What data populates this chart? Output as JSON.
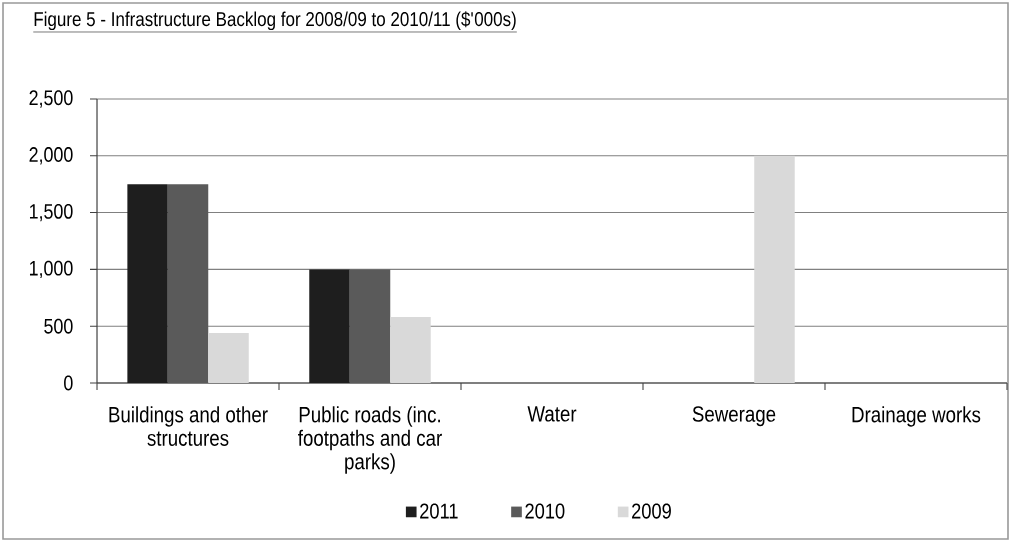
{
  "chart_data": {
    "type": "bar",
    "title": "Figure 5 - Infrastructure Backlog for 2008/09 to 2010/11 ($'000s)",
    "categories": [
      "Buildings and other structures",
      "Public roads (inc. footpaths and car parks)",
      "Water",
      "Sewerage",
      "Drainage works"
    ],
    "series": [
      {
        "name": "2011",
        "color": "#1e1e1e",
        "values": [
          1750,
          1000,
          0,
          0,
          0
        ]
      },
      {
        "name": "2010",
        "color": "#5a5a5a",
        "values": [
          1750,
          1000,
          0,
          0,
          0
        ]
      },
      {
        "name": "2009",
        "color": "#d9d9d9",
        "values": [
          440,
          580,
          0,
          2000,
          0
        ]
      }
    ],
    "ylim": [
      0,
      2500
    ],
    "yticks": [
      0,
      {
        "value": 500,
        "label": "500"
      },
      {
        "value": 1000,
        "label": "1,000"
      },
      {
        "value": 1500,
        "label": "1,500"
      },
      {
        "value": 2000,
        "label": "2,000"
      },
      {
        "value": 2500,
        "label": "2,500"
      }
    ],
    "grid": "y",
    "legend": "bottom"
  }
}
